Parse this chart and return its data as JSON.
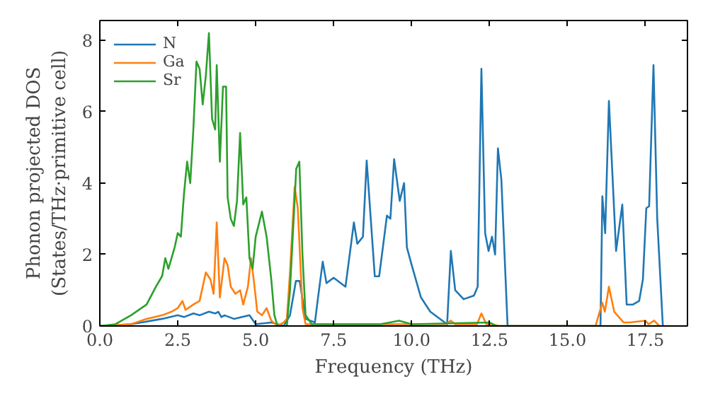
{
  "chart_data": {
    "type": "line",
    "xlabel": "Frequency (THz)",
    "ylabel": "Phonon projected DOS\n(States/THz·primitive cell)",
    "xlim": [
      0,
      18.85
    ],
    "ylim": [
      0,
      8.55
    ],
    "xticks": [
      {
        "value": 0,
        "label": "0.0"
      },
      {
        "value": 2.5,
        "label": "2.5"
      },
      {
        "value": 5,
        "label": "5.0"
      },
      {
        "value": 7.5,
        "label": "7.5"
      },
      {
        "value": 10,
        "label": "10.0"
      },
      {
        "value": 12.5,
        "label": "12.5"
      },
      {
        "value": 15,
        "label": "15.0"
      },
      {
        "value": 17.5,
        "label": "17.5"
      }
    ],
    "yticks": [
      0,
      2,
      4,
      6,
      8
    ],
    "grid": false,
    "legend": "top left",
    "series": [
      {
        "name": "N",
        "color": "#1f77b4",
        "x": [
          0,
          1.0,
          2.0,
          2.5,
          2.7,
          3.0,
          3.2,
          3.5,
          3.7,
          3.8,
          3.9,
          4.0,
          4.3,
          4.8,
          5.0,
          5.5,
          5.7,
          5.9,
          6.1,
          6.29,
          6.41,
          6.6,
          6.9,
          7.0,
          7.15,
          7.27,
          7.5,
          7.88,
          8.15,
          8.26,
          8.44,
          8.56,
          8.82,
          8.96,
          9.21,
          9.32,
          9.44,
          9.62,
          9.76,
          9.85,
          9.99,
          10.3,
          10.6,
          11.14,
          11.26,
          11.4,
          11.67,
          12.0,
          12.12,
          12.24,
          12.36,
          12.47,
          12.58,
          12.68,
          12.77,
          12.88,
          13.08,
          16.06,
          16.12,
          16.21,
          16.33,
          16.56,
          16.76,
          16.9,
          17.1,
          17.3,
          17.42,
          17.53,
          17.62,
          17.76,
          17.88,
          18.06
        ],
        "values": [
          0,
          0.05,
          0.2,
          0.3,
          0.25,
          0.35,
          0.3,
          0.4,
          0.35,
          0.4,
          0.25,
          0.3,
          0.2,
          0.3,
          0.05,
          0.1,
          0.05,
          0,
          0.3,
          1.26,
          1.26,
          0.2,
          0.1,
          0.8,
          1.8,
          1.2,
          1.35,
          1.1,
          2.9,
          2.3,
          2.5,
          4.63,
          1.39,
          1.39,
          3.09,
          3.0,
          4.67,
          3.5,
          4.0,
          2.2,
          1.75,
          0.8,
          0.4,
          0.05,
          2.1,
          1.0,
          0.75,
          0.85,
          1.1,
          7.2,
          2.6,
          2.1,
          2.5,
          2.0,
          4.97,
          4.1,
          0,
          0,
          3.63,
          2.6,
          6.3,
          2.1,
          3.4,
          0.6,
          0.6,
          0.7,
          1.3,
          3.3,
          3.35,
          7.3,
          3.0,
          0
        ]
      },
      {
        "name": "Ga",
        "color": "#ff7f0e",
        "x": [
          0,
          1.0,
          1.5,
          2.0,
          2.3,
          2.5,
          2.65,
          2.75,
          3.0,
          3.2,
          3.4,
          3.55,
          3.65,
          3.75,
          3.85,
          4.0,
          4.1,
          4.2,
          4.35,
          4.5,
          4.6,
          4.75,
          4.85,
          4.95,
          5.05,
          5.2,
          5.35,
          5.5,
          5.7,
          5.9,
          6.0,
          6.1,
          6.25,
          6.35,
          6.5,
          6.6,
          11.1,
          11.26,
          11.4,
          12.1,
          12.24,
          12.4,
          12.6,
          12.8,
          15.9,
          16.12,
          16.2,
          16.33,
          16.5,
          16.8,
          17.0,
          17.5,
          17.6,
          17.78,
          17.95
        ],
        "values": [
          0,
          0.05,
          0.2,
          0.3,
          0.4,
          0.5,
          0.7,
          0.45,
          0.6,
          0.7,
          1.5,
          1.3,
          0.9,
          2.9,
          0.8,
          1.9,
          1.7,
          1.1,
          0.9,
          1.0,
          0.6,
          1.1,
          1.9,
          1.2,
          0.4,
          0.3,
          0.5,
          0.15,
          0,
          0.1,
          0.2,
          1.5,
          3.9,
          3.3,
          0.5,
          0.05,
          0.05,
          0.15,
          0.05,
          0.05,
          0.35,
          0.05,
          0.05,
          0,
          0,
          0.65,
          0.4,
          1.1,
          0.4,
          0.1,
          0.1,
          0.15,
          0.05,
          0.15,
          0
        ]
      },
      {
        "name": "Sr",
        "color": "#2ca02c",
        "x": [
          0,
          0.5,
          1.0,
          1.5,
          1.8,
          2.0,
          2.1,
          2.2,
          2.4,
          2.5,
          2.6,
          2.7,
          2.8,
          2.9,
          3.0,
          3.1,
          3.2,
          3.3,
          3.4,
          3.5,
          3.6,
          3.7,
          3.75,
          3.85,
          3.95,
          4.05,
          4.1,
          4.2,
          4.3,
          4.4,
          4.5,
          4.6,
          4.7,
          4.8,
          4.9,
          5.0,
          5.2,
          5.35,
          5.5,
          5.6,
          5.7,
          6.0,
          6.1,
          6.3,
          6.4,
          6.5,
          6.6,
          6.8,
          9.0,
          9.6,
          10.0,
          12.5,
          12.7,
          18.0
        ],
        "values": [
          0,
          0.05,
          0.3,
          0.6,
          1.1,
          1.4,
          1.9,
          1.6,
          2.2,
          2.6,
          2.5,
          3.7,
          4.6,
          4.0,
          5.5,
          7.4,
          7.2,
          6.2,
          7.0,
          8.2,
          5.8,
          5.5,
          7.3,
          4.6,
          6.7,
          6.7,
          3.6,
          3.0,
          2.8,
          3.5,
          5.4,
          3.4,
          3.6,
          1.9,
          1.6,
          2.5,
          3.2,
          2.5,
          1.3,
          0.3,
          0,
          0,
          1.0,
          4.4,
          4.6,
          2.0,
          0.3,
          0.05,
          0.05,
          0.15,
          0.05,
          0.1,
          0,
          0
        ]
      }
    ]
  }
}
